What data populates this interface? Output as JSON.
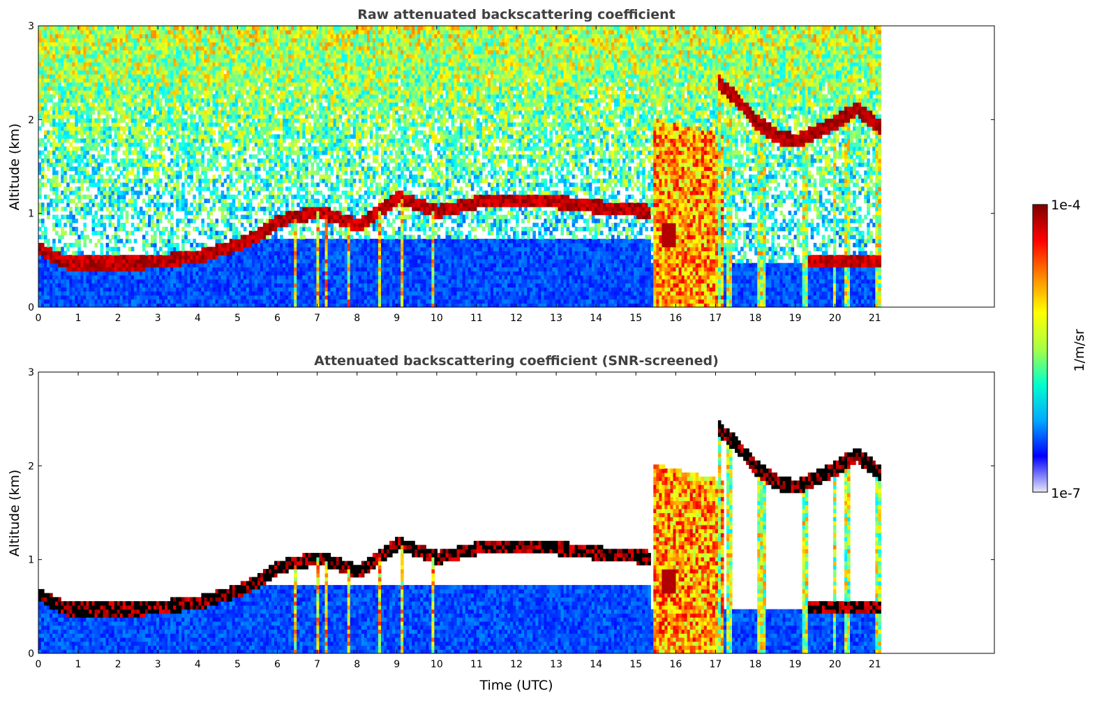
{
  "chart_data": [
    {
      "type": "heatmap",
      "title": "Raw attenuated backscattering coefficient",
      "xlabel": "",
      "ylabel": "Altitude (km)",
      "xlim": [
        0,
        24
      ],
      "ylim": [
        0,
        3
      ],
      "x_ticks": [
        "0",
        "1",
        "2",
        "3",
        "4",
        "5",
        "6",
        "7",
        "8",
        "9",
        "10",
        "11",
        "12",
        "13",
        "14",
        "15",
        "16",
        "17",
        "18",
        "19",
        "20",
        "21"
      ],
      "y_ticks": [
        "0",
        "1",
        "2",
        "3"
      ],
      "data_extent_hours": 21.15,
      "features": {
        "cloud_base_layer": [
          {
            "t": 0.0,
            "alt": 0.6
          },
          {
            "t": 0.7,
            "alt": 0.45
          },
          {
            "t": 1.5,
            "alt": 0.45
          },
          {
            "t": 2.5,
            "alt": 0.45
          },
          {
            "t": 4.0,
            "alt": 0.52
          },
          {
            "t": 5.0,
            "alt": 0.65
          },
          {
            "t": 5.5,
            "alt": 0.75
          },
          {
            "t": 6.0,
            "alt": 0.9
          },
          {
            "t": 7.0,
            "alt": 1.0
          },
          {
            "t": 8.0,
            "alt": 0.85
          },
          {
            "t": 9.0,
            "alt": 1.15
          },
          {
            "t": 10.0,
            "alt": 1.0
          },
          {
            "t": 11.0,
            "alt": 1.1
          },
          {
            "t": 12.0,
            "alt": 1.1
          },
          {
            "t": 13.0,
            "alt": 1.1
          },
          {
            "t": 14.0,
            "alt": 1.05
          },
          {
            "t": 15.3,
            "alt": 1.0
          }
        ],
        "upper_cloud_layer": [
          {
            "t": 17.0,
            "alt": 2.4
          },
          {
            "t": 17.5,
            "alt": 2.2
          },
          {
            "t": 18.0,
            "alt": 1.95
          },
          {
            "t": 18.5,
            "alt": 1.8
          },
          {
            "t": 19.0,
            "alt": 1.75
          },
          {
            "t": 19.5,
            "alt": 1.85
          },
          {
            "t": 20.0,
            "alt": 1.95
          },
          {
            "t": 20.5,
            "alt": 2.1
          },
          {
            "t": 21.1,
            "alt": 1.9
          }
        ]
      }
    },
    {
      "type": "heatmap",
      "title": "Attenuated backscattering coefficient (SNR-screened)",
      "xlabel": "Time (UTC)",
      "ylabel": "Altitude (km)",
      "xlim": [
        0,
        24
      ],
      "ylim": [
        0,
        3
      ],
      "x_ticks": [
        "0",
        "1",
        "2",
        "3",
        "4",
        "5",
        "6",
        "7",
        "8",
        "9",
        "10",
        "11",
        "12",
        "13",
        "14",
        "15",
        "16",
        "17",
        "18",
        "19",
        "20",
        "21"
      ],
      "y_ticks": [
        "0",
        "1",
        "2",
        "3"
      ],
      "data_extent_hours": 21.15
    }
  ],
  "colorbar": {
    "label": "1/m/sr",
    "max_label": "1e-4",
    "min_label": "1e-7",
    "scale": "log",
    "range": [
      1e-07,
      0.0001
    ],
    "colormap": "jet",
    "stops": [
      "#e8e8f8",
      "#0000ff",
      "#00aaff",
      "#00ffcc",
      "#aaff44",
      "#ffff00",
      "#ff8800",
      "#ff0000",
      "#7f0000"
    ]
  }
}
